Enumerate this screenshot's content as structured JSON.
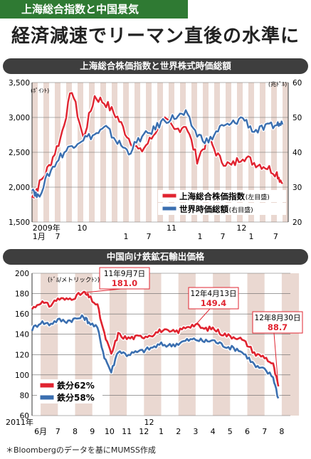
{
  "header": {
    "tag": "上海総合指数と中国景気",
    "headline": "経済減速でリーマン直後の水準に"
  },
  "source": "＊Bloombergのデータを基にMUMSS作成",
  "colors": {
    "red": "#e02430",
    "blue": "#3b6fb0",
    "band": "#ead8d1",
    "tag": "#2f7a33",
    "panel": "#3e3e3e"
  },
  "chart_data": [
    {
      "type": "line",
      "title": "上海総合株価指数と世界株式時価総額",
      "left_unit": "(ﾎﾟｲﾝﾄ)",
      "right_unit": "(兆ﾄﾞﾙ)",
      "ylim_left": [
        1500,
        3500
      ],
      "ylim_right": [
        20,
        60
      ],
      "left_ticks": [
        "3,500",
        "3,000",
        "2,500",
        "2,000",
        "1,500"
      ],
      "right_ticks": [
        "60",
        "50",
        "40",
        "30",
        "20"
      ],
      "x_labels": [
        "2009年",
        "1月",
        "7",
        "10",
        "1",
        "7",
        "11",
        "1",
        "7",
        "12",
        "1",
        "7"
      ],
      "series": [
        {
          "name": "上海総合株価指数",
          "axis_note": "(左目盛)",
          "axis": "left",
          "color": "#e02430",
          "x": [
            0,
            1,
            3,
            5,
            7,
            9,
            11,
            13,
            15,
            17,
            19,
            21,
            23,
            25,
            27,
            29,
            31,
            33,
            35,
            37,
            39,
            41,
            43,
            44
          ],
          "values": [
            1850,
            2000,
            2300,
            2700,
            3400,
            2700,
            3300,
            3200,
            3000,
            2700,
            2500,
            2700,
            3000,
            2800,
            2900,
            2400,
            2700,
            2400,
            2300,
            2450,
            2350,
            2300,
            2200,
            2050
          ]
        },
        {
          "name": "世界時価総額",
          "axis_note": "(右目盛)",
          "axis": "right",
          "color": "#3b6fb0",
          "x": [
            0,
            1,
            3,
            5,
            7,
            9,
            11,
            13,
            15,
            17,
            19,
            21,
            23,
            25,
            27,
            29,
            31,
            33,
            35,
            37,
            39,
            41,
            43,
            44
          ],
          "values": [
            30,
            27,
            34,
            39,
            42,
            44,
            45,
            47,
            43,
            40,
            44,
            46,
            49,
            50,
            51,
            45,
            43,
            47,
            48,
            50,
            46,
            47,
            48,
            48
          ]
        }
      ]
    },
    {
      "type": "line",
      "title": "中国向け鉄鉱石輸出価格",
      "unit": "(ﾄﾞﾙ/メトリックﾄﾝ)",
      "ylim": [
        60,
        200
      ],
      "ticks": [
        "200",
        "180",
        "160",
        "140",
        "120",
        "100",
        "80",
        "60"
      ],
      "x_labels": [
        "2011年",
        "6月",
        "7",
        "8",
        "9",
        "10",
        "11",
        "12",
        "1",
        "2",
        "3",
        "4",
        "5",
        "6",
        "7",
        "8"
      ],
      "annotations": [
        {
          "date": "11年9月7日",
          "value": "181.0"
        },
        {
          "date": "12年4月13日",
          "value": "149.4"
        },
        {
          "date": "12年8月30日",
          "value": "88.7"
        }
      ],
      "series": [
        {
          "name": "鉄分62%",
          "color": "#e02430",
          "x": [
            0,
            0.5,
            1,
            1.5,
            2,
            2.5,
            3,
            3.3,
            3.8,
            4.2,
            4.6,
            5,
            5.5,
            6,
            6.5,
            7,
            7.5,
            8,
            8.5,
            9,
            9.5,
            10,
            10.5,
            11,
            11.5,
            12,
            12.5,
            13,
            13.5,
            14,
            14.3
          ],
          "values": [
            165,
            172,
            168,
            175,
            174,
            177,
            181,
            177,
            168,
            140,
            120,
            140,
            136,
            137,
            138,
            140,
            144,
            142,
            143,
            148,
            149.4,
            145,
            146,
            141,
            138,
            137,
            130,
            120,
            118,
            110,
            88.7
          ]
        },
        {
          "name": "鉄分58%",
          "color": "#3b6fb0",
          "x": [
            0,
            0.5,
            1,
            1.5,
            2,
            2.5,
            3,
            3.3,
            3.8,
            4.2,
            4.6,
            5,
            5.5,
            6,
            6.5,
            7,
            7.5,
            8,
            8.5,
            9,
            9.5,
            10,
            10.5,
            11,
            11.5,
            12,
            12.5,
            13,
            13.5,
            14,
            14.3
          ],
          "values": [
            145,
            152,
            150,
            154,
            153,
            155,
            157,
            152,
            146,
            118,
            103,
            124,
            120,
            122,
            124,
            127,
            130,
            129,
            131,
            134,
            135,
            133,
            134,
            130,
            127,
            125,
            118,
            108,
            105,
            98,
            77
          ]
        }
      ]
    }
  ]
}
